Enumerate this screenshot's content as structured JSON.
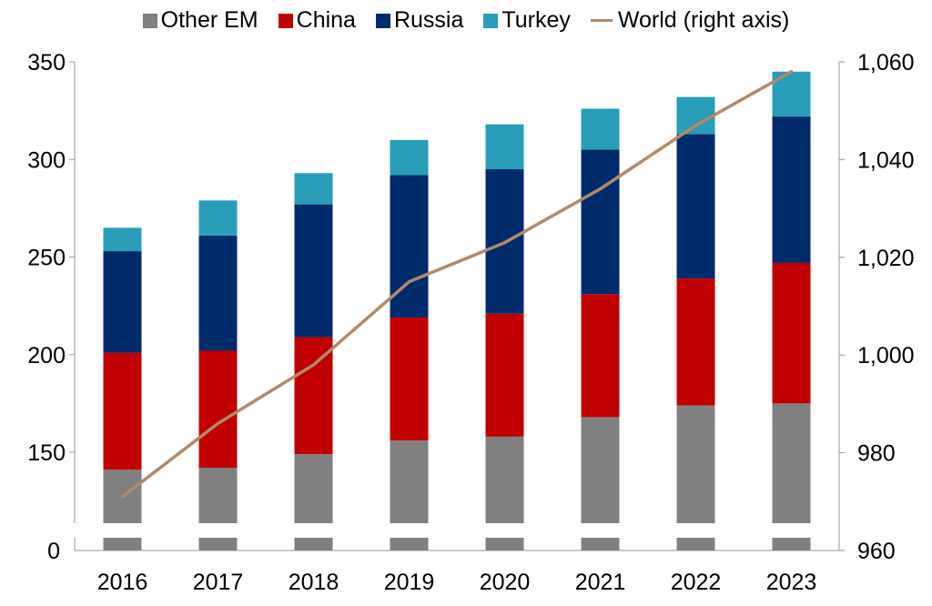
{
  "chart_data": {
    "type": "bar",
    "stacked": true,
    "categories": [
      "2016",
      "2017",
      "2018",
      "2019",
      "2020",
      "2021",
      "2022",
      "2023"
    ],
    "series": [
      {
        "name": "Other EM",
        "color": "#808080",
        "values": [
          141,
          142,
          149,
          156,
          158,
          168,
          174,
          175
        ]
      },
      {
        "name": "China",
        "color": "#c00000",
        "values": [
          60,
          60,
          60,
          63,
          63,
          63,
          65,
          72
        ]
      },
      {
        "name": "Russia",
        "color": "#002b6b",
        "values": [
          52,
          59,
          68,
          73,
          74,
          74,
          74,
          75
        ]
      },
      {
        "name": "Turkey",
        "color": "#2a9db8",
        "values": [
          12,
          18,
          16,
          18,
          23,
          21,
          19,
          23
        ]
      }
    ],
    "line_series": {
      "name": "World (right axis)",
      "color": "#b08a6a",
      "axis": "right",
      "values": [
        971,
        986,
        998,
        1015,
        1023,
        1034,
        1047,
        1058
      ]
    },
    "left_axis": {
      "ylim": [
        0,
        350
      ],
      "ticks": [
        "0",
        "150",
        "200",
        "250",
        "300",
        "350"
      ],
      "axis_break": true
    },
    "right_axis": {
      "ylim": [
        960,
        1060
      ],
      "ticks": [
        "960",
        "980",
        "1,000",
        "1,020",
        "1,040",
        "1,060"
      ]
    },
    "grid": false,
    "legend_position": "top"
  }
}
